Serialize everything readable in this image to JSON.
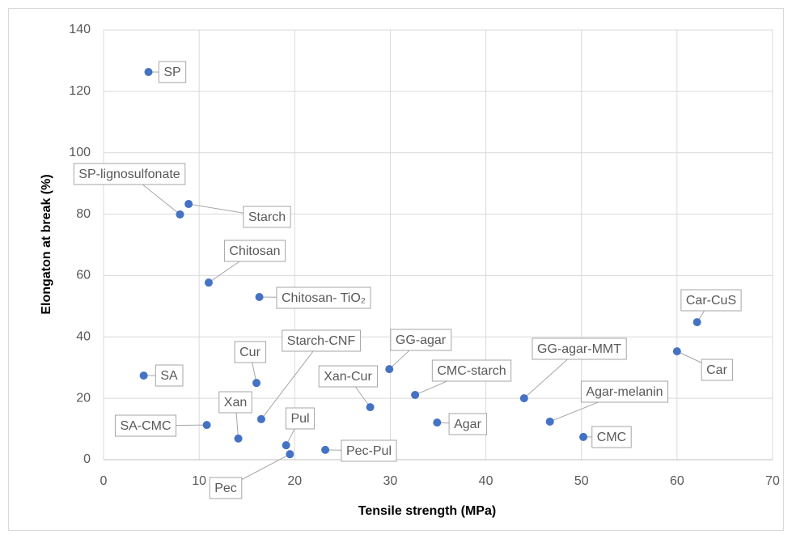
{
  "chart_data": {
    "type": "scatter",
    "x_label": "Tensile strength (MPa)",
    "y_label": "Elongaton at break (%)",
    "xlim": [
      0,
      70
    ],
    "xticks": [
      0,
      10,
      20,
      30,
      40,
      50,
      60,
      70
    ],
    "ylim": [
      0,
      140
    ],
    "yticks": [
      0,
      20,
      40,
      60,
      80,
      100,
      120,
      140
    ],
    "grid": true,
    "color": "#4472c4",
    "points": [
      {
        "label": "SP",
        "x": 4.7,
        "y": 126.3
      },
      {
        "label": "SP-lignosulfonate",
        "x": 8.0,
        "y": 79.9
      },
      {
        "label": "Starch",
        "x": 8.9,
        "y": 83.3
      },
      {
        "label": "Chitosan",
        "x": 11.0,
        "y": 57.7
      },
      {
        "label": "Chitosan- TiO₂",
        "x": 16.3,
        "y": 53.0
      },
      {
        "label": "Car-CuS",
        "x": 62.1,
        "y": 44.8
      },
      {
        "label": "Car",
        "x": 60.0,
        "y": 35.3
      },
      {
        "label": "SA",
        "x": 4.2,
        "y": 27.4
      },
      {
        "label": "GG-agar",
        "x": 29.9,
        "y": 29.5
      },
      {
        "label": "Cur",
        "x": 16.0,
        "y": 25.0
      },
      {
        "label": "CMC-starch",
        "x": 32.6,
        "y": 21.1
      },
      {
        "label": "GG-agar-MMT",
        "x": 44.0,
        "y": 20.0
      },
      {
        "label": "Starch-CNF",
        "x": 16.5,
        "y": 13.2
      },
      {
        "label": "Xan-Cur",
        "x": 27.9,
        "y": 17.1
      },
      {
        "label": "Agar-melanin",
        "x": 46.7,
        "y": 12.4
      },
      {
        "label": "Agar",
        "x": 34.9,
        "y": 12.1
      },
      {
        "label": "SA-CMC",
        "x": 10.8,
        "y": 11.3
      },
      {
        "label": "CMC",
        "x": 50.2,
        "y": 7.4
      },
      {
        "label": "Xan",
        "x": 14.1,
        "y": 6.9
      },
      {
        "label": "Pul",
        "x": 19.1,
        "y": 4.7
      },
      {
        "label": "Pec",
        "x": 19.5,
        "y": 1.8
      },
      {
        "label": "Pec-Pul",
        "x": 23.2,
        "y": 3.2
      }
    ]
  }
}
